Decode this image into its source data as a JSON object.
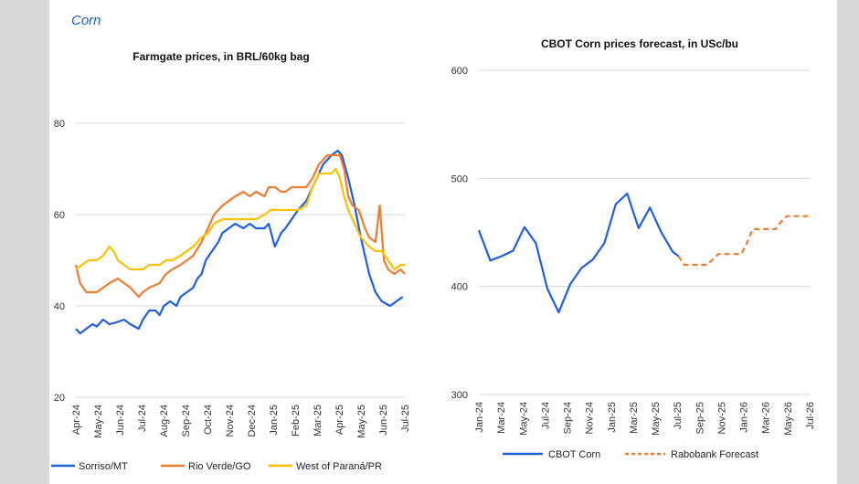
{
  "page": {
    "section_label": "Corn"
  },
  "chart_data": [
    {
      "id": "farmgate",
      "type": "line",
      "title": "Farmgate prices, in BRL/60kg bag",
      "xlabel": "",
      "ylabel": "",
      "ylim": [
        20,
        80
      ],
      "yticks": [
        20,
        40,
        60,
        80
      ],
      "xlim": [
        0,
        15.7
      ],
      "xtick_labels": [
        "Apr-24",
        "May-24",
        "Jun-24",
        "Jul-24",
        "Aug-24",
        "Sep-24",
        "Oct-24",
        "Nov-24",
        "Dec-24",
        "Jan-25",
        "Feb-25",
        "Mar-25",
        "Apr-25",
        "May-25",
        "Jun-25",
        "Jul-25"
      ],
      "grid": true,
      "legend": "bottom",
      "series": [
        {
          "name": "Sorriso/MT",
          "color": "#1f5fe0",
          "points": [
            [
              0,
              35
            ],
            [
              0.2,
              34
            ],
            [
              0.5,
              35
            ],
            [
              0.8,
              36
            ],
            [
              1,
              35.5
            ],
            [
              1.3,
              37
            ],
            [
              1.6,
              36
            ],
            [
              2,
              36.5
            ],
            [
              2.3,
              37
            ],
            [
              2.6,
              36
            ],
            [
              3,
              35
            ],
            [
              3.2,
              37
            ],
            [
              3.5,
              39
            ],
            [
              3.8,
              39
            ],
            [
              4,
              38
            ],
            [
              4.2,
              40
            ],
            [
              4.5,
              41
            ],
            [
              4.8,
              40
            ],
            [
              5,
              42
            ],
            [
              5.3,
              43
            ],
            [
              5.6,
              44
            ],
            [
              5.8,
              46
            ],
            [
              6,
              47
            ],
            [
              6.2,
              50
            ],
            [
              6.5,
              52
            ],
            [
              6.8,
              54
            ],
            [
              7,
              56
            ],
            [
              7.3,
              57
            ],
            [
              7.6,
              58
            ],
            [
              8,
              57
            ],
            [
              8.3,
              58
            ],
            [
              8.6,
              57
            ],
            [
              9,
              57
            ],
            [
              9.2,
              58
            ],
            [
              9.5,
              53
            ],
            [
              9.8,
              56
            ],
            [
              10,
              57
            ],
            [
              10.3,
              59
            ],
            [
              10.6,
              61
            ],
            [
              11,
              63
            ],
            [
              11.2,
              65
            ],
            [
              11.5,
              68
            ],
            [
              11.8,
              71
            ],
            [
              12,
              72
            ],
            [
              12.2,
              73
            ],
            [
              12.5,
              74
            ],
            [
              12.7,
              73
            ],
            [
              13,
              68
            ],
            [
              13.3,
              62
            ],
            [
              13.6,
              55
            ],
            [
              14,
              47
            ],
            [
              14.3,
              43
            ],
            [
              14.6,
              41
            ],
            [
              15,
              40
            ],
            [
              15.3,
              41
            ],
            [
              15.6,
              42
            ]
          ]
        },
        {
          "name": "Rio Verde/GO",
          "color": "#ed7d31",
          "points": [
            [
              0,
              49
            ],
            [
              0.2,
              45
            ],
            [
              0.5,
              43
            ],
            [
              1,
              43
            ],
            [
              1.3,
              44
            ],
            [
              1.6,
              45
            ],
            [
              2,
              46
            ],
            [
              2.3,
              45
            ],
            [
              2.6,
              44
            ],
            [
              3,
              42
            ],
            [
              3.2,
              43
            ],
            [
              3.5,
              44
            ],
            [
              4,
              45
            ],
            [
              4.3,
              47
            ],
            [
              4.6,
              48
            ],
            [
              5,
              49
            ],
            [
              5.3,
              50
            ],
            [
              5.6,
              51
            ],
            [
              6,
              54
            ],
            [
              6.3,
              57
            ],
            [
              6.6,
              60
            ],
            [
              7,
              62
            ],
            [
              7.3,
              63
            ],
            [
              7.6,
              64
            ],
            [
              8,
              65
            ],
            [
              8.3,
              64
            ],
            [
              8.6,
              65
            ],
            [
              9,
              64
            ],
            [
              9.2,
              66
            ],
            [
              9.5,
              66
            ],
            [
              9.8,
              65
            ],
            [
              10,
              65
            ],
            [
              10.3,
              66
            ],
            [
              10.6,
              66
            ],
            [
              11,
              66
            ],
            [
              11.3,
              68
            ],
            [
              11.6,
              71
            ],
            [
              12,
              73
            ],
            [
              12.3,
              73
            ],
            [
              12.6,
              73
            ],
            [
              12.8,
              70
            ],
            [
              13,
              64
            ],
            [
              13.2,
              62
            ],
            [
              13.5,
              61
            ],
            [
              13.8,
              57
            ],
            [
              14,
              55
            ],
            [
              14.3,
              54
            ],
            [
              14.5,
              62
            ],
            [
              14.7,
              50
            ],
            [
              14.9,
              48
            ],
            [
              15.2,
              47
            ],
            [
              15.5,
              48
            ],
            [
              15.7,
              47
            ]
          ]
        },
        {
          "name": "West of Paraná/PR",
          "color": "#ffc000",
          "points": [
            [
              0,
              48
            ],
            [
              0.3,
              49
            ],
            [
              0.6,
              50
            ],
            [
              1,
              50
            ],
            [
              1.3,
              51
            ],
            [
              1.6,
              53
            ],
            [
              1.8,
              52
            ],
            [
              2,
              50
            ],
            [
              2.3,
              49
            ],
            [
              2.6,
              48
            ],
            [
              3,
              48
            ],
            [
              3.2,
              48
            ],
            [
              3.5,
              49
            ],
            [
              4,
              49
            ],
            [
              4.3,
              50
            ],
            [
              4.6,
              50
            ],
            [
              5,
              51
            ],
            [
              5.3,
              52
            ],
            [
              5.6,
              53
            ],
            [
              6,
              55
            ],
            [
              6.3,
              56
            ],
            [
              6.6,
              58
            ],
            [
              7,
              59
            ],
            [
              7.3,
              59
            ],
            [
              7.6,
              59
            ],
            [
              8,
              59
            ],
            [
              8.3,
              59
            ],
            [
              8.6,
              59
            ],
            [
              9,
              60
            ],
            [
              9.3,
              61
            ],
            [
              9.6,
              61
            ],
            [
              10,
              61
            ],
            [
              10.3,
              61
            ],
            [
              10.6,
              61
            ],
            [
              11,
              62
            ],
            [
              11.3,
              66
            ],
            [
              11.6,
              69
            ],
            [
              12,
              69
            ],
            [
              12.2,
              69
            ],
            [
              12.4,
              70
            ],
            [
              12.6,
              68
            ],
            [
              12.8,
              64
            ],
            [
              13,
              61
            ],
            [
              13.3,
              58
            ],
            [
              13.6,
              55
            ],
            [
              14,
              53
            ],
            [
              14.3,
              52
            ],
            [
              14.6,
              52
            ],
            [
              14.9,
              50
            ],
            [
              15.2,
              48
            ],
            [
              15.5,
              49
            ],
            [
              15.7,
              49
            ]
          ]
        }
      ]
    },
    {
      "id": "cbot",
      "type": "line",
      "title": "CBOT Corn prices forecast, in USc/bu",
      "xlabel": "",
      "ylabel": "",
      "ylim": [
        300,
        600
      ],
      "yticks": [
        300,
        400,
        500,
        600
      ],
      "xtick_labels": [
        "Jan-24",
        "Mar-24",
        "May-24",
        "Jul-24",
        "Sep-24",
        "Nov-24",
        "Jan-25",
        "Mar-25",
        "May-25",
        "Jul-25",
        "Sep-25",
        "Nov-25",
        "Jan-26",
        "Mar-26",
        "May-26",
        "Jul-26"
      ],
      "grid": true,
      "legend": "bottom",
      "series": [
        {
          "name": "CBOT Corn",
          "color": "#1f5fe0",
          "dash": "",
          "points": [
            [
              0,
              452
            ],
            [
              1,
              424
            ],
            [
              2,
              428
            ],
            [
              3,
              433
            ],
            [
              4,
              455
            ],
            [
              5,
              440
            ],
            [
              6,
              398
            ],
            [
              7,
              376
            ],
            [
              8,
              402
            ],
            [
              9,
              417
            ],
            [
              10,
              425
            ],
            [
              11,
              440
            ],
            [
              12,
              476
            ],
            [
              13,
              486
            ],
            [
              14,
              454
            ],
            [
              15,
              473
            ],
            [
              16,
              450
            ],
            [
              17,
              432
            ],
            [
              17.5,
              428
            ]
          ]
        },
        {
          "name": "Rabobank Forecast",
          "color": "#ed7d31",
          "dash": "6,4",
          "points": [
            [
              17.5,
              428
            ],
            [
              18,
              420
            ],
            [
              19,
              420
            ],
            [
              20,
              420
            ],
            [
              20.5,
              425
            ],
            [
              21,
              430
            ],
            [
              22,
              430
            ],
            [
              23,
              430
            ],
            [
              23.5,
              440
            ],
            [
              24,
              453
            ],
            [
              25,
              453
            ],
            [
              26,
              453
            ],
            [
              26.5,
              460
            ],
            [
              27,
              465
            ],
            [
              28,
              465
            ],
            [
              29,
              465
            ]
          ]
        }
      ]
    }
  ]
}
